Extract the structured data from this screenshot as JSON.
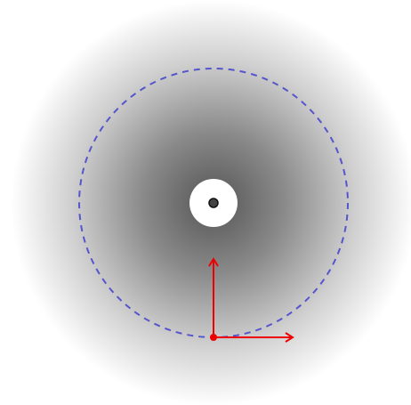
{
  "diagram": {
    "description_visible_text": [],
    "elements": {
      "gradient_disk": {
        "center_color": "#555555",
        "edge_color": "#ffffff"
      },
      "orbit_circle": {
        "stroke": "#5555cc",
        "style": "dashed"
      },
      "central_body": {
        "fill": "#ffffff"
      },
      "center_dot": {
        "fill": "#444444",
        "ring": "#111111"
      },
      "particle": {
        "fill": "#ee0000"
      },
      "velocity_vector_up": {
        "stroke": "#ee0000",
        "direction": "up"
      },
      "velocity_vector_right": {
        "stroke": "#ee0000",
        "direction": "right"
      }
    }
  }
}
